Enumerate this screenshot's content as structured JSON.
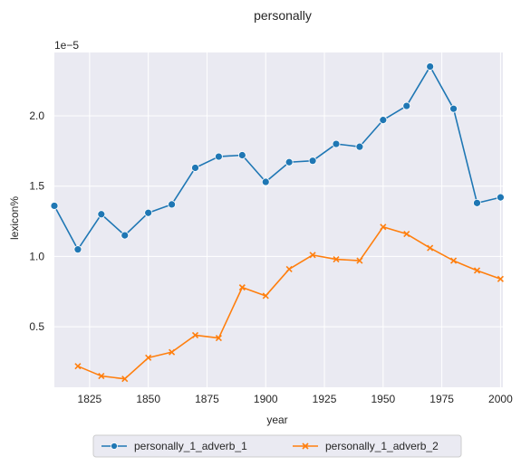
{
  "chart_data": {
    "type": "line",
    "title": "personally",
    "xlabel": "year",
    "ylabel": "lexicon%",
    "y_offset_label": "1e−5",
    "xlim": [
      1810,
      2001
    ],
    "ylim": [
      0.07,
      2.45
    ],
    "y_scale_note": "values in units of 1e-5",
    "xticks": [
      1825,
      1850,
      1875,
      1900,
      1925,
      1950,
      1975,
      2000
    ],
    "xtick_labels": [
      "1825",
      "1850",
      "1875",
      "1900",
      "1925",
      "1950",
      "1975",
      "2000"
    ],
    "yticks": [
      0.5,
      1.0,
      1.5,
      2.0
    ],
    "ytick_labels": [
      "0.5",
      "1.0",
      "1.5",
      "2.0"
    ],
    "grid": true,
    "legend_position": "bottom-center",
    "series": [
      {
        "name": "personally_1_adverb_1",
        "color": "#1f77b4",
        "marker": "circle",
        "x": [
          1810,
          1820,
          1830,
          1840,
          1850,
          1860,
          1870,
          1880,
          1890,
          1900,
          1910,
          1920,
          1930,
          1940,
          1950,
          1960,
          1970,
          1980,
          1990,
          2000
        ],
        "values": [
          1.36,
          1.05,
          1.3,
          1.15,
          1.31,
          1.37,
          1.63,
          1.71,
          1.72,
          1.53,
          1.67,
          1.68,
          1.8,
          1.78,
          1.97,
          2.07,
          2.35,
          2.05,
          1.38,
          1.42
        ]
      },
      {
        "name": "personally_1_adverb_2",
        "color": "#ff7f0e",
        "marker": "x",
        "x": [
          1820,
          1830,
          1840,
          1850,
          1860,
          1870,
          1880,
          1890,
          1900,
          1910,
          1920,
          1930,
          1940,
          1950,
          1960,
          1970,
          1980,
          1990,
          2000
        ],
        "values": [
          0.22,
          0.15,
          0.13,
          0.28,
          0.32,
          0.44,
          0.42,
          0.78,
          0.72,
          0.91,
          1.01,
          0.98,
          0.97,
          1.21,
          1.16,
          1.06,
          0.97,
          0.9,
          0.84
        ]
      }
    ]
  }
}
